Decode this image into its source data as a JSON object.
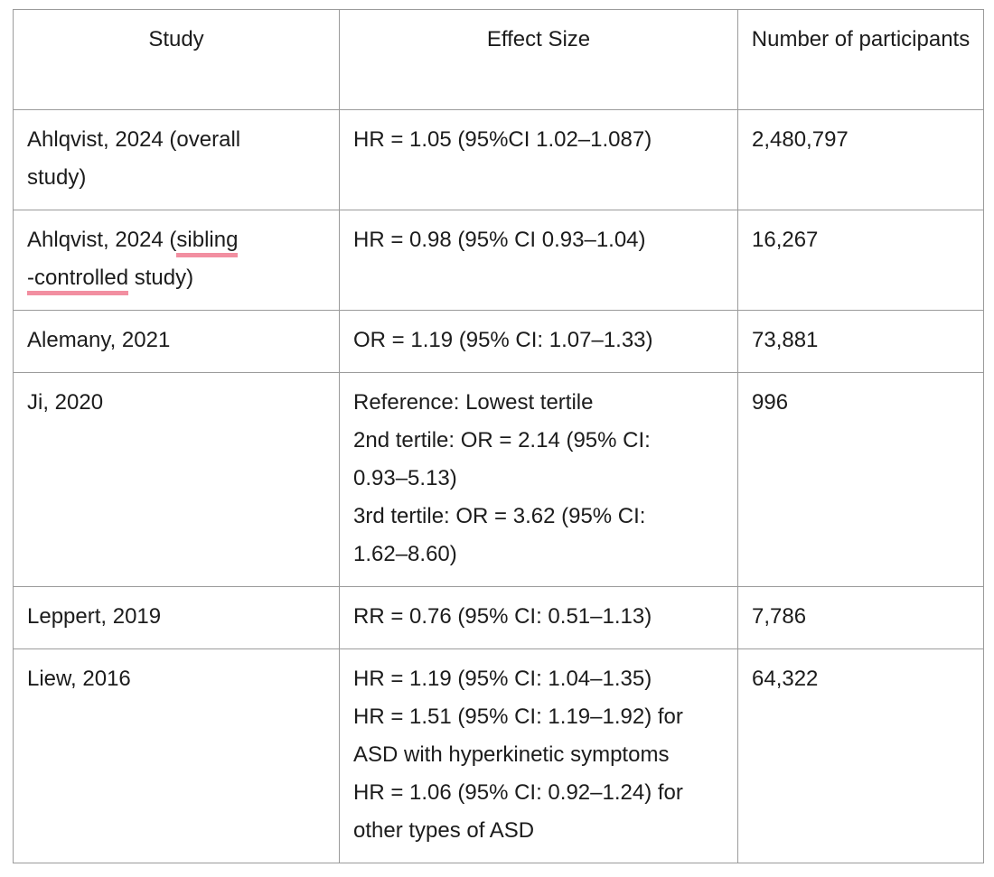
{
  "page": {
    "background": "#ffffff"
  },
  "table": {
    "border_color": "#9b9b9b",
    "text_color": "#1c1c1c",
    "highlight_color": "#f28fa1",
    "columns": [
      "Study",
      "Effect Size",
      "Number of participants"
    ],
    "rows": [
      {
        "study_lines": [
          [
            {
              "t": "Ahlqvist, 2024 (overall"
            }
          ],
          [
            {
              "t": "study)"
            }
          ]
        ],
        "effect_lines": [
          "HR = 1.05 (95%CI 1.02–1.087)"
        ],
        "participants": "2,480,797"
      },
      {
        "study_lines": [
          [
            {
              "t": "Ahlqvist, 2024 ("
            },
            {
              "t": "sibling",
              "u": true
            }
          ],
          [
            {
              "t": "-controlled",
              "u": true
            },
            {
              "t": " study)"
            }
          ]
        ],
        "effect_lines": [
          "HR = 0.98 (95% CI 0.93–1.04)"
        ],
        "participants": "16,267"
      },
      {
        "study_lines": [
          [
            {
              "t": "Alemany, 2021"
            }
          ]
        ],
        "effect_lines": [
          "OR = 1.19 (95% CI: 1.07–1.33)"
        ],
        "participants": "73,881"
      },
      {
        "study_lines": [
          [
            {
              "t": "Ji, 2020"
            }
          ]
        ],
        "effect_lines": [
          "Reference: Lowest tertile",
          "2nd tertile: OR = 2.14 (95% CI:",
          "0.93–5.13)",
          "3rd tertile: OR = 3.62 (95% CI:",
          "1.62–8.60)"
        ],
        "participants": "996"
      },
      {
        "study_lines": [
          [
            {
              "t": "Leppert, 2019"
            }
          ]
        ],
        "effect_lines": [
          "RR = 0.76 (95% CI: 0.51–1.13)"
        ],
        "participants": "7,786"
      },
      {
        "study_lines": [
          [
            {
              "t": "Liew, 2016"
            }
          ]
        ],
        "effect_lines": [
          "HR = 1.19 (95% CI: 1.04–1.35)",
          "HR = 1.51 (95% CI: 1.19–1.92) for",
          "ASD with hyperkinetic symptoms",
          "HR = 1.06 (95% CI: 0.92–1.24) for",
          "other types of ASD"
        ],
        "participants": "64,322"
      }
    ]
  }
}
